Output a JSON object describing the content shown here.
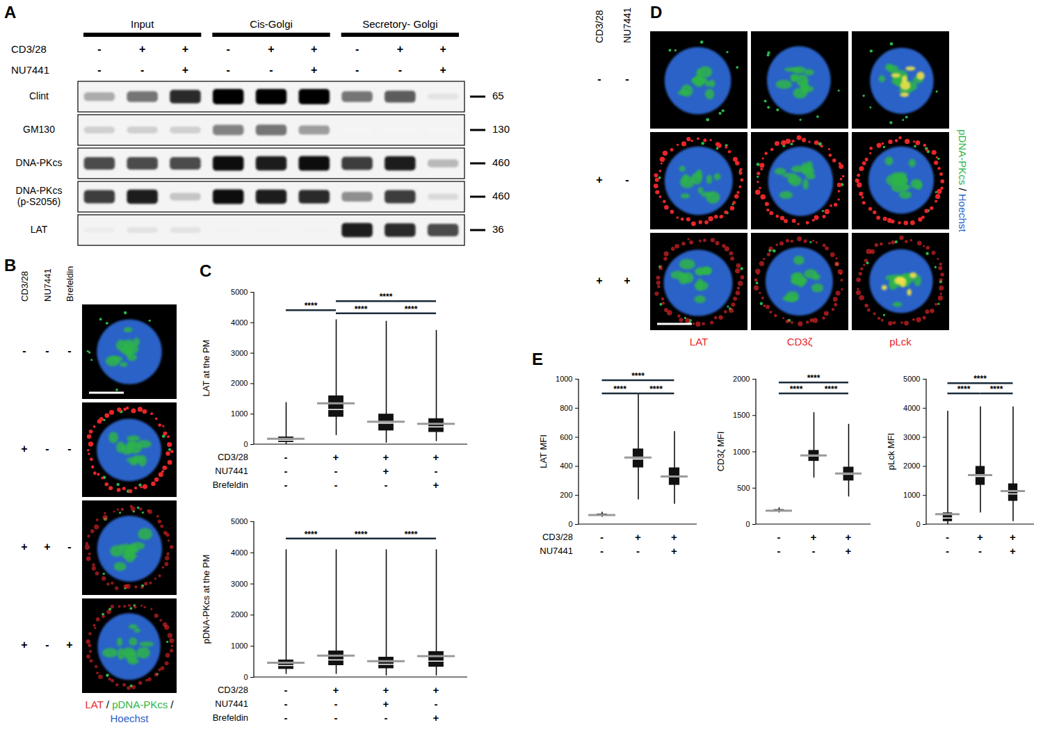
{
  "panel_letters": [
    "A",
    "B",
    "C",
    "D",
    "E"
  ],
  "blot": {
    "lane_groups": [
      {
        "label": "Input",
        "lanes": 3
      },
      {
        "label": "Cis-Golgi",
        "lanes": 3
      },
      {
        "label": "Secretory- Golgi",
        "lanes": 3
      }
    ],
    "conditions": [
      {
        "name": "CD3/28",
        "values": [
          "-",
          "+",
          "+",
          "-",
          "+",
          "+",
          "-",
          "+",
          "+"
        ]
      },
      {
        "name": "NU7441",
        "values": [
          "-",
          "-",
          "+",
          "-",
          "-",
          "+",
          "-",
          "-",
          "+"
        ]
      }
    ],
    "bands": [
      {
        "name": "Clint",
        "mw": 65,
        "intensity": [
          0.4,
          0.6,
          0.85,
          1,
          1,
          1,
          0.6,
          0.7,
          0.15
        ]
      },
      {
        "name": "GM130",
        "mw": 130,
        "intensity": [
          0.25,
          0.25,
          0.25,
          0.55,
          0.6,
          0.45,
          0.02,
          0.02,
          0.02
        ]
      },
      {
        "name": "DNA-PKcs",
        "mw": 460,
        "intensity": [
          0.75,
          0.75,
          0.75,
          0.95,
          0.9,
          0.95,
          0.8,
          0.9,
          0.35
        ]
      },
      {
        "name": "DNA-PKcs (p-S2056)",
        "mw": 460,
        "intensity": [
          0.8,
          0.9,
          0.3,
          0.95,
          0.9,
          0.85,
          0.5,
          0.8,
          0.2
        ]
      },
      {
        "name": "LAT",
        "mw": 36,
        "intensity": [
          0.1,
          0.15,
          0.15,
          0.05,
          0.05,
          0.05,
          0.9,
          0.85,
          0.75
        ]
      }
    ]
  },
  "micrographs_B": {
    "conditions": [
      {
        "name": "CD3/28",
        "values": [
          "-",
          "+",
          "+",
          "+"
        ]
      },
      {
        "name": "NU7441",
        "values": [
          "-",
          "-",
          "+",
          "-"
        ]
      },
      {
        "name": "Brefeldin",
        "values": [
          "-",
          "-",
          "-",
          "+"
        ]
      }
    ],
    "channel_label": {
      "items": [
        {
          "text": "LAT",
          "color": "#e8262a"
        },
        {
          "text": "pDNA-PKcs",
          "color": "#2db54a"
        },
        {
          "text": "Hoechst",
          "color": "#2a62c8"
        }
      ],
      "separator": " / "
    }
  },
  "micrographs_D": {
    "conditions": [
      {
        "name": "CD3/28",
        "values": [
          "-",
          "+",
          "+"
        ]
      },
      {
        "name": "NU7441",
        "values": [
          "-",
          "-",
          "+"
        ]
      }
    ],
    "columns": [
      {
        "text": "LAT",
        "color": "#e8262a"
      },
      {
        "text": "CD3ζ",
        "color": "#e8262a"
      },
      {
        "text": "pLck",
        "color": "#e8262a"
      }
    ],
    "channel_label": {
      "items": [
        {
          "text": "pDNA-PKcs",
          "color": "#2db54a"
        },
        {
          "text": "Hoechst",
          "color": "#2a62c8"
        }
      ],
      "separator": " / "
    }
  },
  "chart_data": [
    {
      "type": "box",
      "ylabel": "LAT at the PM",
      "ylim": [
        0,
        5000
      ],
      "yticks": [
        0,
        1000,
        2000,
        3000,
        4000,
        5000
      ],
      "groups": [
        {
          "min": 0,
          "q1": 70,
          "median": 140,
          "q3": 250,
          "max": 1380,
          "mean": 190
        },
        {
          "min": 300,
          "q1": 900,
          "median": 1150,
          "q3": 1600,
          "max": 4100,
          "mean": 1350
        },
        {
          "min": 50,
          "q1": 450,
          "median": 700,
          "q3": 1000,
          "max": 4050,
          "mean": 750
        },
        {
          "min": 100,
          "q1": 400,
          "median": 580,
          "q3": 850,
          "max": 3750,
          "mean": 680
        }
      ],
      "conditions": [
        {
          "name": "CD3/28",
          "values": [
            "-",
            "+",
            "+",
            "+"
          ]
        },
        {
          "name": "NU7441",
          "values": [
            "-",
            "-",
            "+",
            "-"
          ]
        },
        {
          "name": "Brefeldin",
          "values": [
            "-",
            "-",
            "-",
            "+"
          ]
        }
      ],
      "comparisons": [
        {
          "between": [
            0,
            1
          ],
          "y": 4400,
          "label": "****"
        },
        {
          "between": [
            1,
            2
          ],
          "y": 4300,
          "label": "****"
        },
        {
          "between": [
            2,
            3
          ],
          "y": 4300,
          "label": "****"
        },
        {
          "between": [
            1,
            3
          ],
          "y": 4700,
          "label": "****"
        }
      ]
    },
    {
      "type": "box",
      "ylabel": "pDNA-PKcs at the PM",
      "ylim": [
        0,
        5000
      ],
      "yticks": [
        0,
        1000,
        2000,
        3000,
        4000,
        5000
      ],
      "groups": [
        {
          "min": 100,
          "q1": 260,
          "median": 380,
          "q3": 560,
          "max": 4100,
          "mean": 470
        },
        {
          "min": 100,
          "q1": 380,
          "median": 560,
          "q3": 850,
          "max": 4100,
          "mean": 700
        },
        {
          "min": 50,
          "q1": 280,
          "median": 420,
          "q3": 650,
          "max": 4100,
          "mean": 520
        },
        {
          "min": 50,
          "q1": 330,
          "median": 520,
          "q3": 830,
          "max": 4100,
          "mean": 680
        }
      ],
      "conditions": [
        {
          "name": "CD3/28",
          "values": [
            "-",
            "+",
            "+",
            "+"
          ]
        },
        {
          "name": "NU7441",
          "values": [
            "-",
            "-",
            "+",
            "-"
          ]
        },
        {
          "name": "Brefeldin",
          "values": [
            "-",
            "-",
            "-",
            "+"
          ]
        }
      ],
      "comparisons": [
        {
          "between": [
            0,
            1
          ],
          "y": 4450,
          "label": "****"
        },
        {
          "between": [
            1,
            2
          ],
          "y": 4450,
          "label": "****"
        },
        {
          "between": [
            2,
            3
          ],
          "y": 4450,
          "label": "****"
        }
      ]
    },
    {
      "type": "box",
      "ylabel": "LAT MFI",
      "ylim": [
        0,
        1000
      ],
      "yticks": [
        0,
        200,
        400,
        600,
        800,
        1000
      ],
      "groups": [
        {
          "min": 50,
          "q1": 60,
          "median": 65,
          "q3": 72,
          "max": 85,
          "mean": 65
        },
        {
          "min": 170,
          "q1": 390,
          "median": 450,
          "q3": 520,
          "max": 900,
          "mean": 460
        },
        {
          "min": 140,
          "q1": 270,
          "median": 330,
          "q3": 390,
          "max": 640,
          "mean": 330
        }
      ],
      "conditions": [
        {
          "name": "CD3/28",
          "values": [
            "-",
            "+",
            "+"
          ]
        },
        {
          "name": "NU7441",
          "values": [
            "-",
            "-",
            "+"
          ]
        }
      ],
      "comparisons": [
        {
          "between": [
            0,
            2
          ],
          "y": 990,
          "label": "****"
        },
        {
          "between": [
            0,
            1
          ],
          "y": 900,
          "label": "****"
        },
        {
          "between": [
            1,
            2
          ],
          "y": 900,
          "label": "****"
        }
      ]
    },
    {
      "type": "box",
      "ylabel": "CD3ζ MFI",
      "ylim": [
        0,
        2000
      ],
      "yticks": [
        0,
        500,
        1000,
        1500,
        2000
      ],
      "groups": [
        {
          "min": 160,
          "q1": 180,
          "median": 190,
          "q3": 205,
          "max": 230,
          "mean": 190
        },
        {
          "min": 640,
          "q1": 870,
          "median": 940,
          "q3": 1020,
          "max": 1540,
          "mean": 950
        },
        {
          "min": 380,
          "q1": 600,
          "median": 690,
          "q3": 790,
          "max": 1380,
          "mean": 700
        }
      ],
      "conditions": [
        {
          "values": [
            "-",
            "+",
            "+"
          ]
        },
        {
          "values": [
            "-",
            "-",
            "+"
          ]
        }
      ],
      "comparisons": [
        {
          "between": [
            0,
            2
          ],
          "y": 1950,
          "label": "****"
        },
        {
          "between": [
            0,
            1
          ],
          "y": 1800,
          "label": "****"
        },
        {
          "between": [
            1,
            2
          ],
          "y": 1800,
          "label": "****"
        }
      ]
    },
    {
      "type": "box",
      "ylabel": "pLck MFI",
      "ylim": [
        0,
        5000
      ],
      "yticks": [
        0,
        1000,
        2000,
        3000,
        4000,
        5000
      ],
      "groups": [
        {
          "min": 0,
          "q1": 100,
          "median": 220,
          "q3": 400,
          "max": 3900,
          "mean": 350
        },
        {
          "min": 400,
          "q1": 1350,
          "median": 1650,
          "q3": 2000,
          "max": 4050,
          "mean": 1700
        },
        {
          "min": 100,
          "q1": 800,
          "median": 1050,
          "q3": 1400,
          "max": 4050,
          "mean": 1150
        }
      ],
      "conditions": [
        {
          "values": [
            "-",
            "+",
            "+"
          ]
        },
        {
          "values": [
            "-",
            "-",
            "+"
          ]
        }
      ],
      "comparisons": [
        {
          "between": [
            0,
            2
          ],
          "y": 4850,
          "label": "****"
        },
        {
          "between": [
            0,
            1
          ],
          "y": 4500,
          "label": "****"
        },
        {
          "between": [
            1,
            2
          ],
          "y": 4500,
          "label": "****"
        }
      ]
    }
  ]
}
